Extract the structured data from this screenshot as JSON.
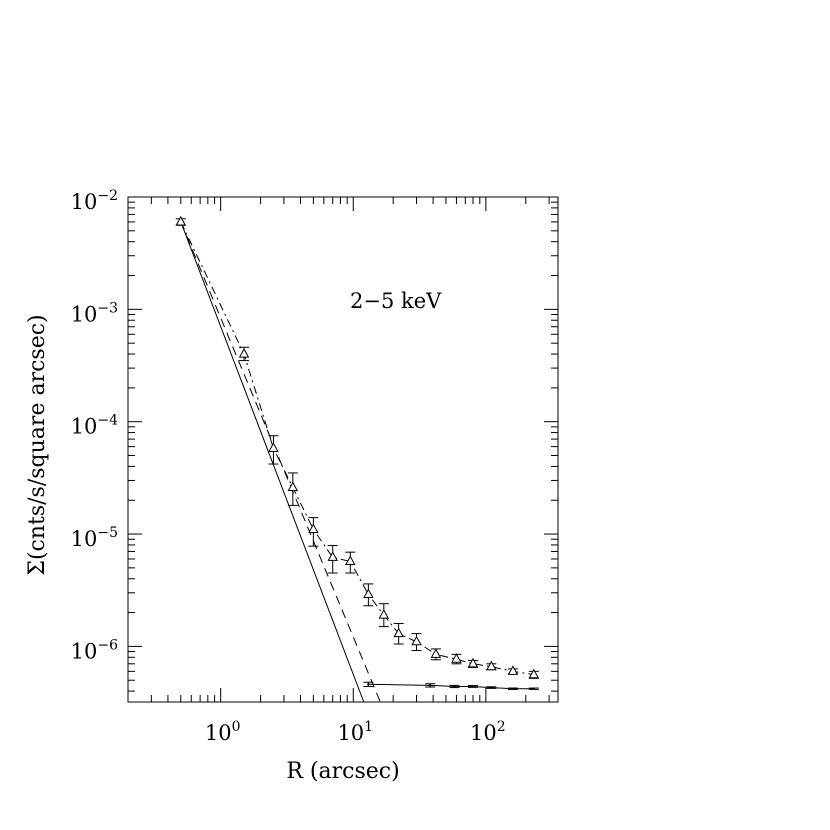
{
  "chart_data": {
    "type": "scatter",
    "title": "",
    "annotation": "2−5 keV",
    "xlabel": "R (arcsec)",
    "ylabel": "Σ(cnts/s/square arcsec)",
    "xscale": "log",
    "yscale": "log",
    "xlim": [
      0.2,
      350
    ],
    "ylim": [
      3.2e-07,
      0.01
    ],
    "x_ticks": [
      {
        "base": "10",
        "exp": "0",
        "value": 1
      },
      {
        "base": "10",
        "exp": "1",
        "value": 10
      },
      {
        "base": "10",
        "exp": "2",
        "value": 100
      }
    ],
    "y_ticks": [
      {
        "base": "10",
        "exp": "−2",
        "value": 0.01
      },
      {
        "base": "10",
        "exp": "−3",
        "value": 0.001
      },
      {
        "base": "10",
        "exp": "−4",
        "value": 0.0001
      },
      {
        "base": "10",
        "exp": "−5",
        "value": 1e-05
      },
      {
        "base": "10",
        "exp": "−6",
        "value": 1e-06
      }
    ],
    "grid": false,
    "series": [
      {
        "marker": "triangle",
        "line": "dash-dot",
        "points": [
          {
            "x": 0.5,
            "y": 0.006,
            "lo": 0.0056,
            "hi": 0.0064
          },
          {
            "x": 1.5,
            "y": 0.0004,
            "lo": 0.00035,
            "hi": 0.00046
          },
          {
            "x": 2.5,
            "y": 5.8e-05,
            "lo": 4.2e-05,
            "hi": 7.5e-05
          },
          {
            "x": 3.5,
            "y": 2.6e-05,
            "lo": 1.8e-05,
            "hi": 3.5e-05
          },
          {
            "x": 5.0,
            "y": 1.1e-05,
            "lo": 7.8e-06,
            "hi": 1.4e-05
          },
          {
            "x": 7.0,
            "y": 6.2e-06,
            "lo": 4.5e-06,
            "hi": 7.9e-06
          },
          {
            "x": 9.5,
            "y": 5.7e-06,
            "lo": 4.5e-06,
            "hi": 6.9e-06
          },
          {
            "x": 13.0,
            "y": 2.9e-06,
            "lo": 2.3e-06,
            "hi": 3.6e-06
          },
          {
            "x": 17.0,
            "y": 1.9e-06,
            "lo": 1.5e-06,
            "hi": 2.4e-06
          },
          {
            "x": 22.0,
            "y": 1.3e-06,
            "lo": 1.05e-06,
            "hi": 1.6e-06
          },
          {
            "x": 30.0,
            "y": 1.1e-06,
            "lo": 9.2e-07,
            "hi": 1.3e-06
          },
          {
            "x": 42.0,
            "y": 8.5e-07,
            "lo": 7.6e-07,
            "hi": 9.5e-07
          },
          {
            "x": 60.0,
            "y": 7.7e-07,
            "lo": 7e-07,
            "hi": 8.5e-07
          },
          {
            "x": 80.0,
            "y": 7e-07,
            "lo": 6.5e-07,
            "hi": 7.5e-07
          },
          {
            "x": 110.0,
            "y": 6.6e-07,
            "lo": 6.2e-07,
            "hi": 7e-07
          },
          {
            "x": 160.0,
            "y": 6e-07,
            "lo": 5.7e-07,
            "hi": 6.3e-07
          },
          {
            "x": 230.0,
            "y": 5.6e-07,
            "lo": 5.2e-07,
            "hi": 6e-07
          }
        ]
      },
      {
        "marker": "errorbar",
        "line": "solid",
        "points": [
          {
            "x": 13.0,
            "y": 4.6e-07,
            "lo": 4.4e-07,
            "hi": 4.8e-07
          },
          {
            "x": 38.0,
            "y": 4.5e-07,
            "lo": 4.35e-07,
            "hi": 4.65e-07
          },
          {
            "x": 58.0,
            "y": 4.4e-07,
            "lo": 4.3e-07,
            "hi": 4.5e-07
          },
          {
            "x": 80.0,
            "y": 4.4e-07,
            "lo": 4.32e-07,
            "hi": 4.48e-07
          },
          {
            "x": 110.0,
            "y": 4.3e-07,
            "lo": 4.23e-07,
            "hi": 4.37e-07
          },
          {
            "x": 160.0,
            "y": 4.2e-07,
            "lo": 4.14e-07,
            "hi": 4.26e-07
          },
          {
            "x": 230.0,
            "y": 4.2e-07,
            "lo": 4.14e-07,
            "hi": 4.26e-07
          }
        ]
      }
    ],
    "lines": [
      {
        "style": "solid",
        "points": [
          [
            0.5,
            0.006
          ],
          [
            12.0,
            3.2e-07
          ]
        ]
      },
      {
        "style": "dashed",
        "points": [
          [
            0.5,
            0.006
          ],
          [
            16.0,
            3.2e-07
          ]
        ]
      }
    ]
  }
}
